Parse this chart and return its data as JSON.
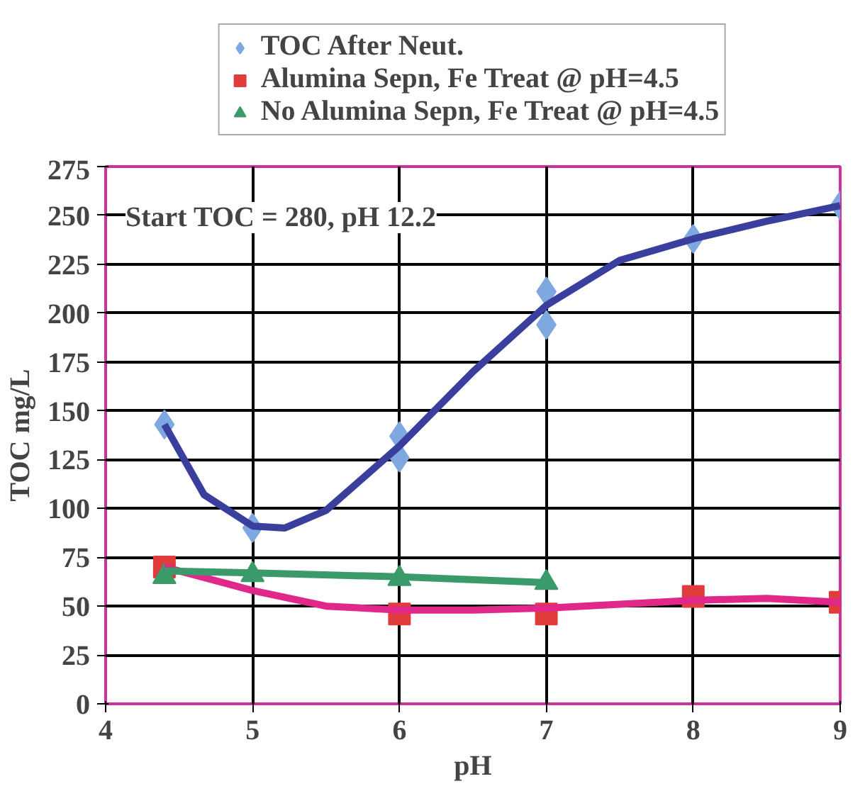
{
  "chart_data": {
    "type": "scatter",
    "xlabel": "pH",
    "ylabel": "TOC mg/L",
    "annotations": [
      "Start TOC = 280, pH 12.2"
    ],
    "xlim": [
      4,
      9
    ],
    "ylim": [
      0,
      275
    ],
    "xticks": [
      4,
      5,
      6,
      7,
      8,
      9
    ],
    "yticks": [
      0,
      25,
      50,
      75,
      100,
      125,
      150,
      175,
      200,
      225,
      250,
      275
    ],
    "grid": true,
    "legend": "top",
    "series": [
      {
        "name": "TOC After Neut.",
        "marker": "diamond",
        "color": "#7fa8e0",
        "x": [
          4.4,
          5,
          6,
          6,
          7,
          7,
          8,
          9
        ],
        "values": [
          143,
          90,
          137,
          126,
          211,
          194,
          238,
          255
        ]
      },
      {
        "name": "Alumina Sepn, Fe Treat @ pH=4.5",
        "marker": "square",
        "color": "#e03c3c",
        "x": [
          4.4,
          6,
          7,
          8,
          9
        ],
        "values": [
          70,
          46,
          46,
          55,
          52
        ]
      },
      {
        "name": "No Alumina Sepn, Fe Treat @ pH=4.5",
        "marker": "triangle",
        "color": "#3a9a6a",
        "x": [
          4.4,
          5,
          6,
          7
        ],
        "values": [
          65,
          66,
          64,
          62
        ]
      },
      {
        "type": "line",
        "marker": "none",
        "color": "#3a3f9e",
        "x": [
          4.4,
          4.67,
          5,
          5.22,
          5.5,
          6,
          6.5,
          7,
          7.5,
          8,
          8.5,
          9
        ],
        "values": [
          143,
          107,
          91,
          90,
          99,
          132,
          170,
          204,
          227,
          238,
          247,
          255
        ]
      },
      {
        "type": "line",
        "marker": "none",
        "color": "#e0288a",
        "x": [
          4.4,
          5,
          5.5,
          6,
          6.5,
          7,
          7.5,
          8,
          8.5,
          9
        ],
        "values": [
          70,
          58,
          50,
          48,
          48,
          49,
          51,
          53,
          54,
          52
        ]
      },
      {
        "type": "line",
        "marker": "none",
        "color": "#3a9a6a",
        "x": [
          4.4,
          5,
          6,
          7
        ],
        "values": [
          68,
          67,
          65,
          62
        ]
      }
    ]
  }
}
